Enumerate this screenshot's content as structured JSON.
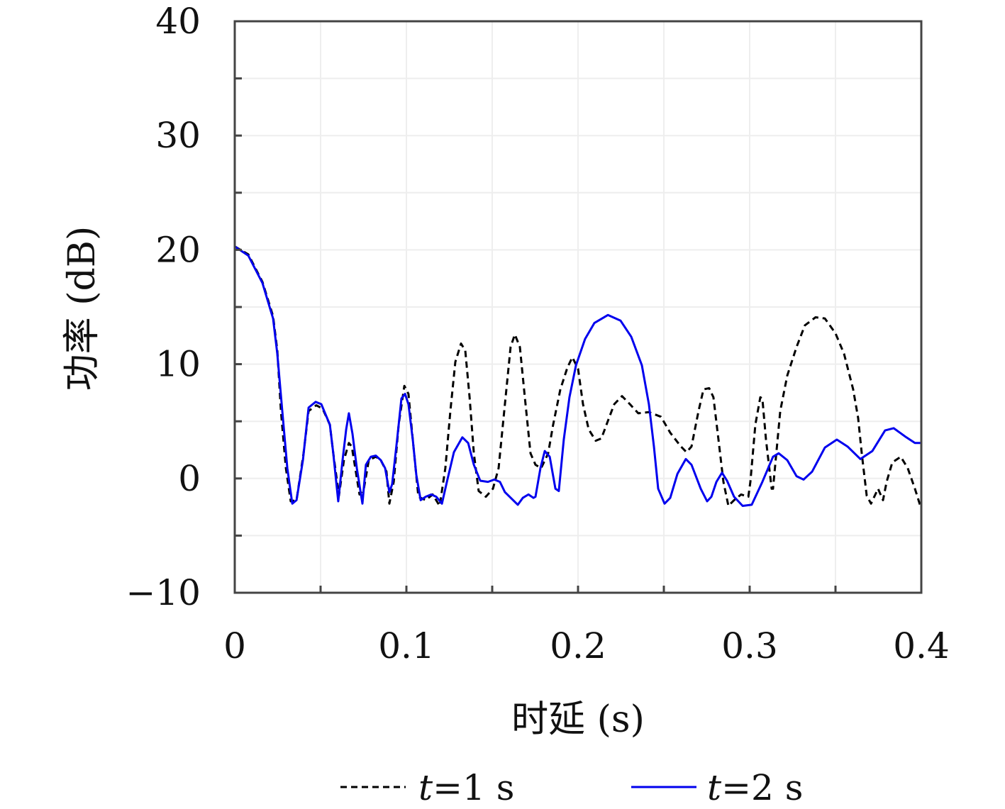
{
  "chart_data": {
    "type": "line",
    "title": "",
    "xlabel": "时延 (s)",
    "ylabel": "功率 (dB)",
    "xlim": [
      0,
      0.4
    ],
    "ylim": [
      -10,
      40
    ],
    "xticks": [
      0,
      0.1,
      0.2,
      0.3,
      0.4
    ],
    "xtick_labels": [
      "0",
      "0.1",
      "0.2",
      "0.3",
      "0.4"
    ],
    "yticks": [
      -10,
      0,
      10,
      20,
      30,
      40
    ],
    "ytick_labels": [
      "−10",
      "0",
      "10",
      "20",
      "30",
      "40"
    ],
    "grid": true,
    "legend_position": "bottom",
    "series": [
      {
        "name": "t=1 s",
        "legend_var": "t",
        "legend_rest": "=1 s",
        "color": "#000000",
        "style": "dashed",
        "x": [
          0,
          0.0079,
          0.0161,
          0.0223,
          0.0248,
          0.0269,
          0.0298,
          0.0326,
          0.036,
          0.0401,
          0.043,
          0.0475,
          0.0512,
          0.0554,
          0.0574,
          0.0607,
          0.0636,
          0.0665,
          0.0682,
          0.0702,
          0.0727,
          0.0752,
          0.0781,
          0.0822,
          0.0851,
          0.0884,
          0.0901,
          0.0926,
          0.0955,
          0.0988,
          0.1012,
          0.1037,
          0.107,
          0.1112,
          0.1153,
          0.1194,
          0.1227,
          0.1256,
          0.1285,
          0.1318,
          0.1343,
          0.1368,
          0.1393,
          0.1421,
          0.1463,
          0.1504,
          0.1537,
          0.1574,
          0.1607,
          0.1632,
          0.1661,
          0.169,
          0.1723,
          0.1752,
          0.1785,
          0.1826,
          0.1855,
          0.1897,
          0.1938,
          0.1967,
          0.2,
          0.2029,
          0.2062,
          0.2103,
          0.2136,
          0.2178,
          0.2211,
          0.2256,
          0.2302,
          0.2351,
          0.2413,
          0.2483,
          0.2537,
          0.2599,
          0.2632,
          0.2661,
          0.2702,
          0.2731,
          0.2764,
          0.2789,
          0.2818,
          0.2847,
          0.2876,
          0.2909,
          0.295,
          0.2992,
          0.3004,
          0.3033,
          0.3062,
          0.3074,
          0.3095,
          0.3128,
          0.3136,
          0.3178,
          0.3219,
          0.3273,
          0.3322,
          0.3384,
          0.3438,
          0.35,
          0.355,
          0.3603,
          0.3632,
          0.3653,
          0.3682,
          0.3707,
          0.3748,
          0.3777,
          0.3798,
          0.3831,
          0.388,
          0.3921,
          0.3963,
          0.3992
        ],
        "y": [
          20.3,
          19.6,
          17.2,
          14.2,
          11.2,
          5.9,
          0.9,
          -2.0,
          -1.9,
          2.2,
          5.9,
          6.4,
          6.1,
          4.7,
          2.2,
          -1.5,
          1.6,
          3.1,
          2.8,
          0.9,
          -1.4,
          -0.9,
          1.6,
          1.9,
          1.6,
          0.6,
          -2.2,
          -0.3,
          4.7,
          8.1,
          7.4,
          3.4,
          -1.6,
          -1.9,
          -1.4,
          -2.4,
          0.9,
          5.9,
          10.2,
          11.8,
          11.2,
          7.1,
          2.2,
          -1.1,
          -1.6,
          -0.9,
          0.9,
          6.5,
          11.5,
          12.6,
          11.5,
          7.1,
          2.2,
          1.2,
          0.9,
          2.2,
          4.7,
          7.8,
          9.7,
          10.6,
          9.6,
          6.5,
          4.3,
          3.3,
          3.5,
          5.2,
          6.5,
          7.2,
          6.5,
          5.7,
          5.8,
          5.4,
          4.0,
          2.8,
          2.3,
          2.8,
          5.9,
          7.8,
          7.9,
          7.1,
          3.4,
          -0.3,
          -2.4,
          -1.9,
          -1.4,
          -1.6,
          -0.3,
          4.7,
          7.1,
          7.0,
          3.4,
          -0.9,
          -0.9,
          5.9,
          9.0,
          11.5,
          13.4,
          14.1,
          14.0,
          12.7,
          10.9,
          7.8,
          5.3,
          2.2,
          -1.5,
          -2.2,
          -0.9,
          -1.9,
          -0.3,
          1.4,
          1.9,
          0.9,
          -0.9,
          -2.3
        ]
      },
      {
        "name": "t=2 s",
        "legend_var": "t",
        "legend_rest": "=2 s",
        "color": "#0000ee",
        "style": "solid",
        "x": [
          0,
          0.0079,
          0.0161,
          0.0223,
          0.0248,
          0.0277,
          0.0306,
          0.0335,
          0.036,
          0.0397,
          0.043,
          0.0471,
          0.0504,
          0.0554,
          0.0574,
          0.0603,
          0.0628,
          0.0649,
          0.0665,
          0.0686,
          0.0711,
          0.0744,
          0.0764,
          0.0793,
          0.0822,
          0.0851,
          0.0876,
          0.0901,
          0.0917,
          0.0946,
          0.0971,
          0.0992,
          0.1012,
          0.1037,
          0.1058,
          0.1083,
          0.1112,
          0.1145,
          0.1174,
          0.1207,
          0.1236,
          0.1277,
          0.1326,
          0.136,
          0.1393,
          0.143,
          0.1475,
          0.1512,
          0.1545,
          0.1574,
          0.1649,
          0.1678,
          0.1711,
          0.174,
          0.1752,
          0.1781,
          0.1806,
          0.1835,
          0.1868,
          0.1888,
          0.1917,
          0.195,
          0.1988,
          0.2041,
          0.2095,
          0.2174,
          0.2248,
          0.231,
          0.2372,
          0.2413,
          0.2442,
          0.2467,
          0.2504,
          0.2537,
          0.2579,
          0.2628,
          0.2661,
          0.2715,
          0.2752,
          0.2777,
          0.2806,
          0.2839,
          0.2868,
          0.2909,
          0.2959,
          0.3012,
          0.3074,
          0.3136,
          0.3169,
          0.3219,
          0.3273,
          0.3314,
          0.3364,
          0.3438,
          0.3508,
          0.357,
          0.3645,
          0.3715,
          0.3789,
          0.3839,
          0.3913,
          0.3963,
          0.4
        ],
        "y": [
          20.3,
          19.5,
          17.1,
          14.0,
          10.9,
          5.9,
          0.9,
          -2.2,
          -1.9,
          1.6,
          6.2,
          6.7,
          6.5,
          4.7,
          2.2,
          -2.0,
          1.6,
          4.3,
          5.7,
          3.9,
          0.9,
          -2.2,
          1.2,
          1.9,
          2.0,
          1.6,
          0.9,
          -1.2,
          -0.5,
          3.4,
          7.0,
          7.4,
          6.5,
          3.4,
          0.3,
          -1.9,
          -1.6,
          -1.4,
          -1.6,
          -2.2,
          -0.3,
          2.3,
          3.6,
          3.1,
          1.2,
          -0.2,
          -0.3,
          -0.1,
          -0.3,
          -1.2,
          -2.3,
          -1.7,
          -1.4,
          -1.7,
          -1.6,
          0.9,
          2.4,
          1.9,
          -0.9,
          -1.1,
          3.4,
          7.1,
          9.9,
          12.2,
          13.6,
          14.3,
          13.8,
          12.4,
          9.9,
          6.5,
          2.8,
          -0.9,
          -2.2,
          -1.7,
          0.4,
          1.7,
          1.2,
          -0.9,
          -2.0,
          -1.6,
          -0.3,
          0.5,
          -0.2,
          -1.6,
          -2.4,
          -2.3,
          -0.3,
          1.9,
          2.2,
          1.6,
          0.2,
          -0.1,
          0.6,
          2.7,
          3.4,
          2.8,
          1.7,
          2.4,
          4.2,
          4.4,
          3.6,
          3.1,
          3.1
        ]
      }
    ]
  }
}
